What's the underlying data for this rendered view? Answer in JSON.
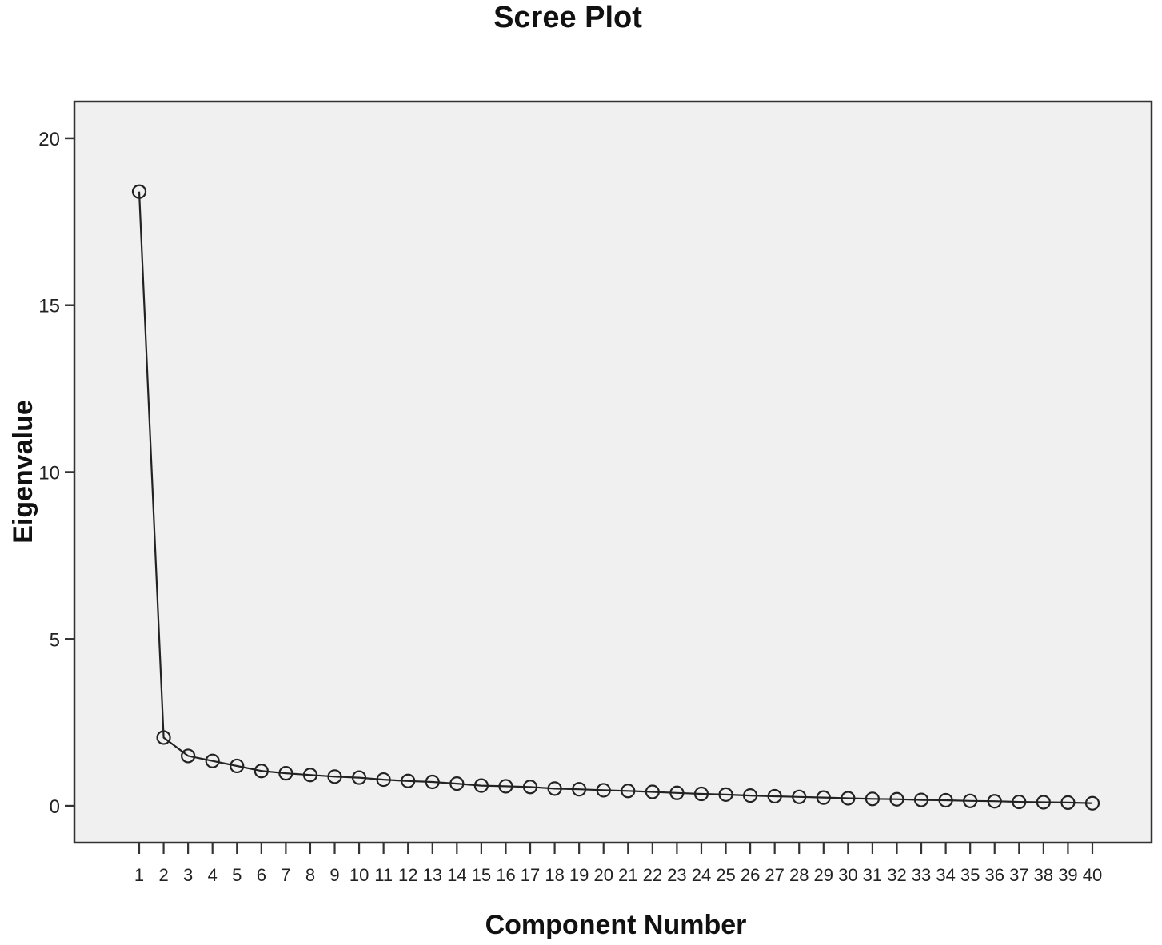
{
  "chart_data": {
    "type": "line",
    "title": "Scree Plot",
    "xlabel": "Component Number",
    "ylabel": "Eigenvalue",
    "x": [
      1,
      2,
      3,
      4,
      5,
      6,
      7,
      8,
      9,
      10,
      11,
      12,
      13,
      14,
      15,
      16,
      17,
      18,
      19,
      20,
      21,
      22,
      23,
      24,
      25,
      26,
      27,
      28,
      29,
      30,
      31,
      32,
      33,
      34,
      35,
      36,
      37,
      38,
      39,
      40
    ],
    "values": [
      18.4,
      2.05,
      1.5,
      1.35,
      1.2,
      1.05,
      0.98,
      0.93,
      0.88,
      0.85,
      0.79,
      0.75,
      0.72,
      0.67,
      0.61,
      0.59,
      0.57,
      0.52,
      0.5,
      0.47,
      0.45,
      0.42,
      0.39,
      0.36,
      0.34,
      0.31,
      0.29,
      0.27,
      0.25,
      0.23,
      0.21,
      0.2,
      0.18,
      0.17,
      0.15,
      0.14,
      0.12,
      0.11,
      0.1,
      0.08
    ],
    "xticks": [
      "1",
      "2",
      "3",
      "4",
      "5",
      "6",
      "7",
      "8",
      "9",
      "10",
      "11",
      "12",
      "13",
      "14",
      "15",
      "16",
      "17",
      "18",
      "19",
      "20",
      "21",
      "22",
      "23",
      "24",
      "25",
      "26",
      "27",
      "28",
      "29",
      "30",
      "31",
      "32",
      "33",
      "34",
      "35",
      "36",
      "37",
      "38",
      "39",
      "40"
    ],
    "yticks": [
      0,
      5,
      10,
      15,
      20
    ],
    "ylim": [
      -1.1,
      21.1
    ],
    "marker": "open-circle",
    "colors": {
      "line": "#222222",
      "plot_background": "#f0f0f0",
      "frame": "#333333"
    },
    "grid": false,
    "legend": "none"
  }
}
